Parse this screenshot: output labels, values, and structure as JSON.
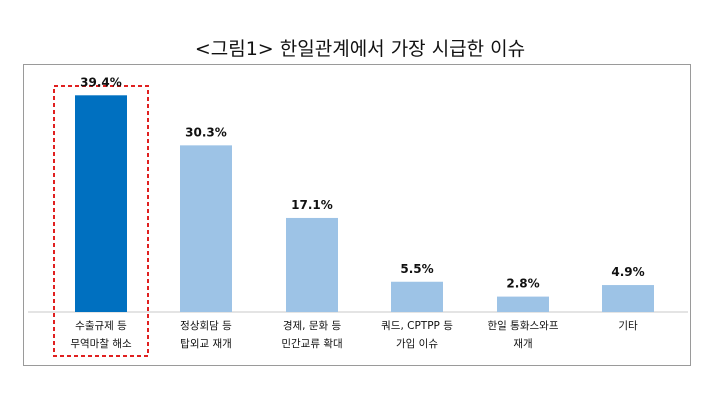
{
  "title": "<그림1> 한일관계에서 가장 시급한 이슈",
  "chart_data": {
    "type": "bar",
    "title": "<그림1> 한일관계에서 가장 시급한 이슈",
    "xlabel": "",
    "ylabel": "",
    "ylim": [
      0,
      40
    ],
    "grid": false,
    "legend": "none",
    "categories": [
      [
        "수출규제 등",
        "무역마찰 해소"
      ],
      [
        "정상회담 등",
        "탑외교 재개"
      ],
      [
        "경제, 문화 등",
        "민간교류 확대"
      ],
      [
        "쿼드, CPTPP 등",
        "가입 이슈"
      ],
      [
        "한일 통화스와프",
        "재개"
      ],
      [
        "기타"
      ]
    ],
    "values": [
      39.4,
      30.3,
      17.1,
      5.5,
      2.8,
      4.9
    ],
    "value_labels": [
      "39.4%",
      "30.3%",
      "17.1%",
      "5.5%",
      "2.8%",
      "4.9%"
    ],
    "highlight_index": 0,
    "colors": {
      "highlight_bar": "#0070C0",
      "bar": "#9DC3E6",
      "highlight_box": "#E02020",
      "text": "#111111"
    }
  }
}
